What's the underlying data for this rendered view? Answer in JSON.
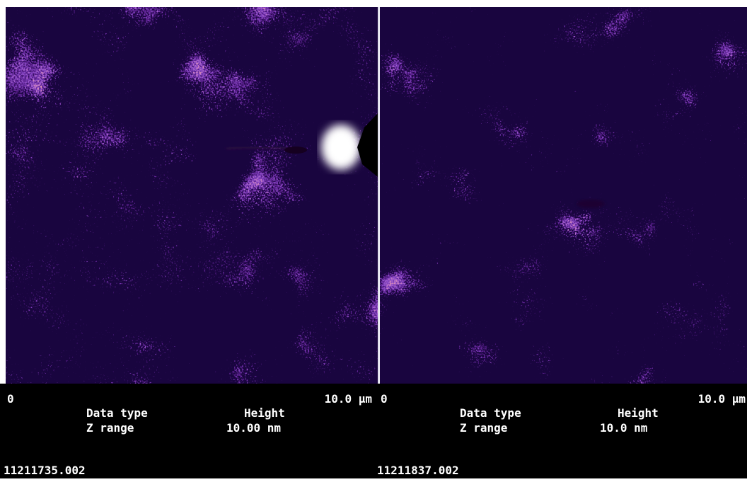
{
  "panels": [
    {
      "scale_start": "0",
      "scale_end": "10.0 µm",
      "data_type_label": "Data type",
      "data_type": "Height",
      "z_range_label": "Z range",
      "z_range": "10.00 nm",
      "file_name": "11211735.002"
    },
    {
      "scale_start": "0",
      "scale_end": "10.0 µm",
      "data_type_label": "Data type",
      "data_type": "Height",
      "z_range_label": "Z range",
      "z_range": "10.0 nm",
      "file_name": "11211837.002"
    }
  ]
}
